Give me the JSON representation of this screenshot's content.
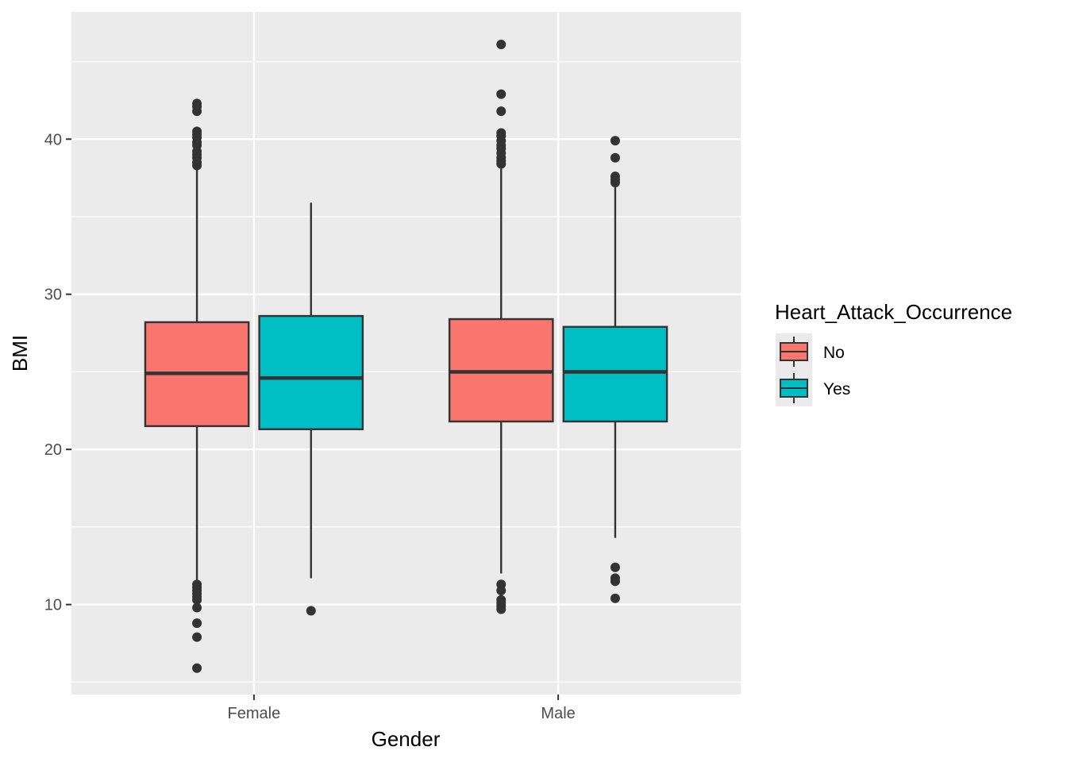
{
  "chart_data": {
    "type": "boxplot",
    "xlabel": "Gender",
    "ylabel": "BMI",
    "categories": [
      "Female",
      "Male"
    ],
    "y_ticks": [
      10,
      20,
      30,
      40
    ],
    "ylim": [
      4.2,
      48.2
    ],
    "grid": true,
    "legend": {
      "title": "Heart_Attack_Occurrence",
      "position": "right",
      "entries": [
        {
          "label": "No",
          "color": "#F8766D"
        },
        {
          "label": "Yes",
          "color": "#00BFC4"
        }
      ]
    },
    "series": [
      {
        "name": "No",
        "color": "#F8766D",
        "boxes": [
          {
            "category": "Female",
            "whisker_low": 11.4,
            "q1": 21.5,
            "median": 24.9,
            "q3": 28.2,
            "whisker_high": 38.2,
            "outliers": [
              42.3,
              42.1,
              41.8,
              40.5,
              40.3,
              40.1,
              39.8,
              39.6,
              39.2,
              39.0,
              38.8,
              38.5,
              38.3,
              11.3,
              11.1,
              10.9,
              10.7,
              10.5,
              10.3,
              9.8,
              8.8,
              7.9,
              5.9
            ]
          },
          {
            "category": "Male",
            "whisker_low": 12.0,
            "q1": 21.8,
            "median": 25.0,
            "q3": 28.4,
            "whisker_high": 38.3,
            "outliers": [
              46.1,
              42.9,
              41.8,
              40.4,
              40.2,
              39.9,
              39.6,
              39.4,
              39.1,
              38.8,
              38.6,
              38.4,
              11.3,
              10.9,
              10.3,
              10.1,
              9.9,
              9.7
            ]
          }
        ]
      },
      {
        "name": "Yes",
        "color": "#00BFC4",
        "boxes": [
          {
            "category": "Female",
            "whisker_low": 11.7,
            "q1": 21.3,
            "median": 24.6,
            "q3": 28.6,
            "whisker_high": 35.9,
            "outliers": [
              9.6
            ]
          },
          {
            "category": "Male",
            "whisker_low": 14.3,
            "q1": 21.8,
            "median": 25.0,
            "q3": 27.9,
            "whisker_high": 36.9,
            "outliers": [
              39.9,
              38.8,
              37.6,
              37.4,
              37.2,
              12.4,
              11.7,
              11.5,
              10.4
            ]
          }
        ]
      }
    ]
  }
}
